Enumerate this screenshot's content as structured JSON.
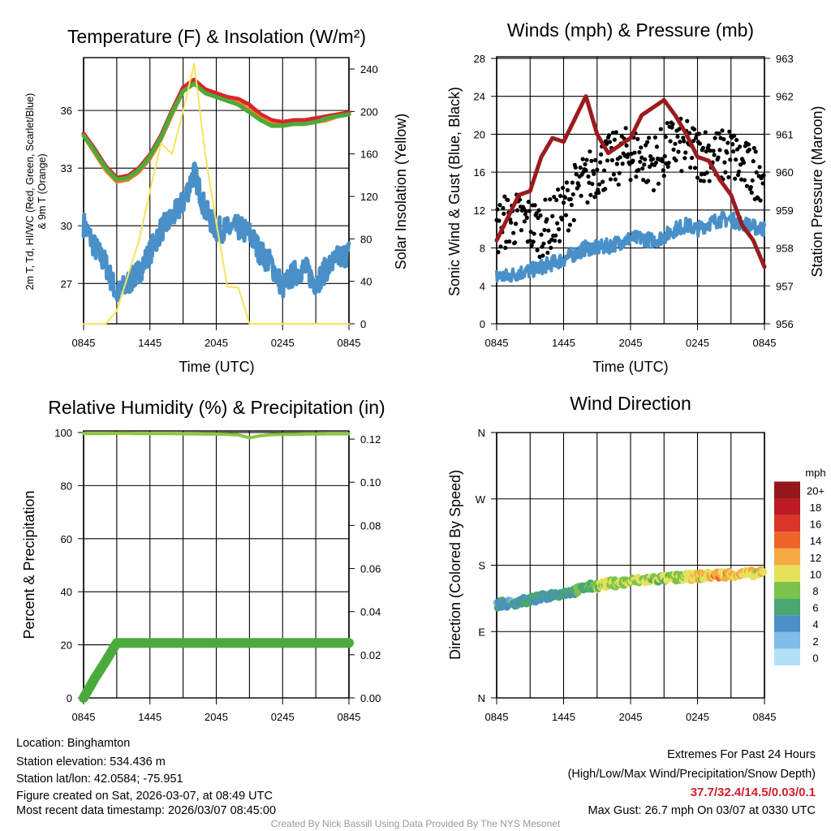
{
  "footer": {
    "location": "Location: Binghamton",
    "elevation": "Station elevation: 534.436 m",
    "latlon": "Station lat/lon: 42.0584; -75.951",
    "created": "Figure created on Sat, 2026-03-07, at 08:49 UTC",
    "recent": "Most recent data timestamp: 2026/03/07 08:45:00",
    "extremes_title": "Extremes For Past 24 Hours",
    "extremes_sub": "(High/Low/Max Wind/Precipitation/Snow Depth)",
    "extremes_values": "37.7/32.4/14.5/0.03/0.1",
    "max_gust": "Max Gust: 26.7 mph On 03/07 at 0330 UTC",
    "credit": "Created By Nick Bassill Using Data Provided By The NYS Mesonet"
  },
  "colors": {
    "temp": "#d7262b",
    "wetbulb_green": "#4aab3c",
    "t9m": "#f47c22",
    "dewpoint": "#4a90c8",
    "solar": "#f7e35a",
    "wind": "#4a90c8",
    "gust": "#000000",
    "pressure": "#9b1b1e",
    "rh": "#8dc63f",
    "precip": "#4aab3c"
  },
  "chart_data": [
    {
      "type": "line",
      "title": "Temperature (F) & Insolation (W/m²)",
      "xlabel": "Time (UTC)",
      "ylabel": [
        "2m T, Td, HI/WC (Red, Green, Scarlet/Blue)",
        "& 9m T (Orange)"
      ],
      "ylabel_right": "Solar Insolation (Yellow)",
      "x_ticks": [
        "0845",
        "1445",
        "2045",
        "0245",
        "0845"
      ],
      "x_hours": [
        0,
        1,
        2,
        3,
        4,
        5,
        6,
        7,
        8,
        9,
        10,
        11,
        12,
        13,
        14,
        15,
        16,
        17,
        18,
        19,
        20,
        21,
        22,
        23,
        24
      ],
      "ylim": [
        24.9,
        38.75
      ],
      "y_ticks": [
        27,
        30,
        33,
        36
      ],
      "ylim_right": [
        0,
        250.7
      ],
      "y_ticks_right": [
        0,
        40,
        80,
        120,
        160,
        200,
        240
      ],
      "grid": true,
      "series": [
        {
          "name": "2m T",
          "color_key": "temp",
          "axis": "left",
          "values": [
            34.8,
            34.0,
            33.1,
            32.5,
            32.6,
            33.0,
            33.7,
            34.7,
            36.0,
            37.2,
            37.6,
            37.1,
            36.9,
            36.7,
            36.6,
            36.3,
            35.8,
            35.5,
            35.4,
            35.5,
            35.5,
            35.6,
            35.7,
            35.8,
            35.9
          ]
        },
        {
          "name": "9m T",
          "color_key": "t9m",
          "axis": "left",
          "values": [
            34.7,
            33.8,
            32.9,
            32.3,
            32.4,
            32.8,
            33.5,
            34.5,
            35.8,
            37.0,
            37.4,
            36.9,
            36.7,
            36.5,
            36.4,
            36.0,
            35.6,
            35.3,
            35.2,
            35.3,
            35.3,
            35.4,
            35.5,
            35.7,
            35.8
          ]
        },
        {
          "name": "HI/WC",
          "color_key": "wetbulb_green",
          "axis": "left",
          "values": [
            34.7,
            33.9,
            33.0,
            32.4,
            32.5,
            32.9,
            33.6,
            34.6,
            35.9,
            37.0,
            37.4,
            36.9,
            36.7,
            36.5,
            36.3,
            35.9,
            35.5,
            35.2,
            35.2,
            35.3,
            35.3,
            35.4,
            35.6,
            35.7,
            35.8
          ]
        },
        {
          "name": "Td",
          "color_key": "dewpoint",
          "axis": "left",
          "values": [
            30.1,
            28.9,
            28.0,
            26.4,
            27.0,
            27.6,
            28.6,
            29.8,
            30.4,
            31.2,
            32.8,
            30.8,
            29.8,
            29.8,
            29.9,
            29.6,
            28.6,
            28.0,
            26.8,
            27.5,
            27.8,
            27.0,
            27.8,
            28.3,
            28.6
          ]
        },
        {
          "name": "Solar Insolation",
          "color_key": "solar",
          "axis": "right",
          "values": [
            0,
            0,
            0,
            12,
            45,
            78,
            125,
            170,
            160,
            200,
            245,
            160,
            95,
            35,
            34,
            0,
            0,
            0,
            0,
            0,
            0,
            0,
            0,
            0,
            0
          ]
        }
      ]
    },
    {
      "type": "line",
      "title": "Winds (mph) & Pressure (mb)",
      "xlabel": "Time (UTC)",
      "ylabel": "Sonic Wind & Gust (Blue, Black)",
      "ylabel_right": "Station Pressure (Maroon)",
      "x_ticks": [
        "0845",
        "1445",
        "2045",
        "0245",
        "0845"
      ],
      "ylim": [
        0,
        28.17
      ],
      "y_ticks": [
        0,
        4,
        8,
        12,
        16,
        20,
        24,
        28
      ],
      "ylim_right": [
        956,
        963.04
      ],
      "y_ticks_right": [
        956,
        957,
        958,
        959,
        960,
        961,
        962,
        963
      ],
      "grid": true,
      "series": [
        {
          "name": "Sonic Wind",
          "color_key": "wind",
          "axis": "left",
          "values": [
            5,
            5,
            5.4,
            5.6,
            6,
            6.4,
            6.8,
            7.4,
            8,
            8,
            8.2,
            8.6,
            9,
            9,
            8.8,
            9.2,
            10,
            10.4,
            10,
            10.6,
            11,
            11,
            10.6,
            10.2,
            10
          ]
        },
        {
          "name": "Gust",
          "color_key": "gust",
          "axis": "left",
          "kind": "scatter",
          "values": [
            10,
            11,
            11,
            10.5,
            10,
            10.5,
            12,
            14,
            15,
            16.5,
            17,
            17.5,
            18,
            17.5,
            17,
            18,
            19,
            18.5,
            18,
            18,
            17.5,
            18,
            16.5,
            16,
            16
          ]
        },
        {
          "name": "Station Pressure",
          "color_key": "pressure",
          "axis": "right",
          "values": [
            958.2,
            958.8,
            959.4,
            959.5,
            960.4,
            960.9,
            960.8,
            961.4,
            962.0,
            961.0,
            960.5,
            960.7,
            960.9,
            961.5,
            961.7,
            961.9,
            961.5,
            961.0,
            960.4,
            960.3,
            959.8,
            959.4,
            958.6,
            958.2,
            957.5
          ]
        }
      ]
    },
    {
      "type": "line",
      "title": "Relative Humidity (%) & Precipitation (in)",
      "ylabel": "Percent & Precipitation",
      "x_ticks": [
        "0845",
        "1445",
        "2045",
        "0245",
        "0845"
      ],
      "ylim": [
        0,
        100.6
      ],
      "y_ticks": [
        0,
        20,
        40,
        60,
        80,
        100
      ],
      "ylim_right": [
        0,
        0.1238
      ],
      "y_ticks_right": [
        "0.00",
        "0.02",
        "0.04",
        "0.06",
        "0.08",
        "0.10",
        "0.12"
      ],
      "grid": true,
      "series": [
        {
          "name": "Relative Humidity",
          "color_key": "rh",
          "axis": "left",
          "values": [
            99.6,
            99.6,
            99.6,
            99.7,
            99.7,
            99.6,
            99.6,
            99.6,
            99.6,
            99.5,
            99.5,
            99.4,
            99.4,
            99.3,
            99.1,
            98.0,
            98.8,
            99.2,
            99.3,
            99.3,
            99.4,
            99.4,
            99.5,
            99.5,
            99.5
          ]
        },
        {
          "name": "Precipitation",
          "color_key": "precip",
          "axis": "right",
          "values": [
            0,
            0.009,
            0.017,
            0.0255,
            0.0255,
            0.0255,
            0.0255,
            0.0255,
            0.0255,
            0.0255,
            0.0255,
            0.0255,
            0.0255,
            0.0255,
            0.0255,
            0.0255,
            0.0255,
            0.0255,
            0.0255,
            0.0255,
            0.0255,
            0.0255,
            0.0255,
            0.0255,
            0.0255
          ]
        }
      ]
    },
    {
      "type": "scatter",
      "title": "Wind Direction",
      "ylabel": "Direction (Colored By Speed)",
      "x_ticks": [
        "0845",
        "1445",
        "2045",
        "0245",
        "0845"
      ],
      "ylim": [
        0,
        360
      ],
      "y_ticks": [
        "N",
        "E",
        "S",
        "W",
        "N"
      ],
      "grid": true,
      "series": [
        {
          "name": "Direction (deg)",
          "values": [
            127,
            128,
            130,
            133,
            136,
            140,
            142,
            145,
            150,
            152,
            155,
            156,
            158,
            160,
            161,
            162,
            163,
            164,
            165,
            166,
            167,
            168,
            168,
            169,
            169
          ]
        },
        {
          "name": "Speed (mph)",
          "values": [
            5,
            5,
            6,
            6,
            6,
            6,
            6,
            7,
            8,
            9,
            10,
            10,
            10,
            10,
            9,
            9,
            10,
            10,
            11,
            12,
            13,
            12,
            12,
            11,
            11
          ]
        }
      ],
      "colorbar": {
        "title": "mph",
        "labels": [
          "0",
          "2",
          "4",
          "6",
          "8",
          "10",
          "12",
          "14",
          "16",
          "18",
          "20+"
        ],
        "colors": [
          "#b3e1f7",
          "#80bce6",
          "#4a8fc6",
          "#49a772",
          "#7bc24c",
          "#e6e15a",
          "#f6a943",
          "#ef6329",
          "#db3428",
          "#bb1c23",
          "#93171b"
        ]
      }
    }
  ]
}
